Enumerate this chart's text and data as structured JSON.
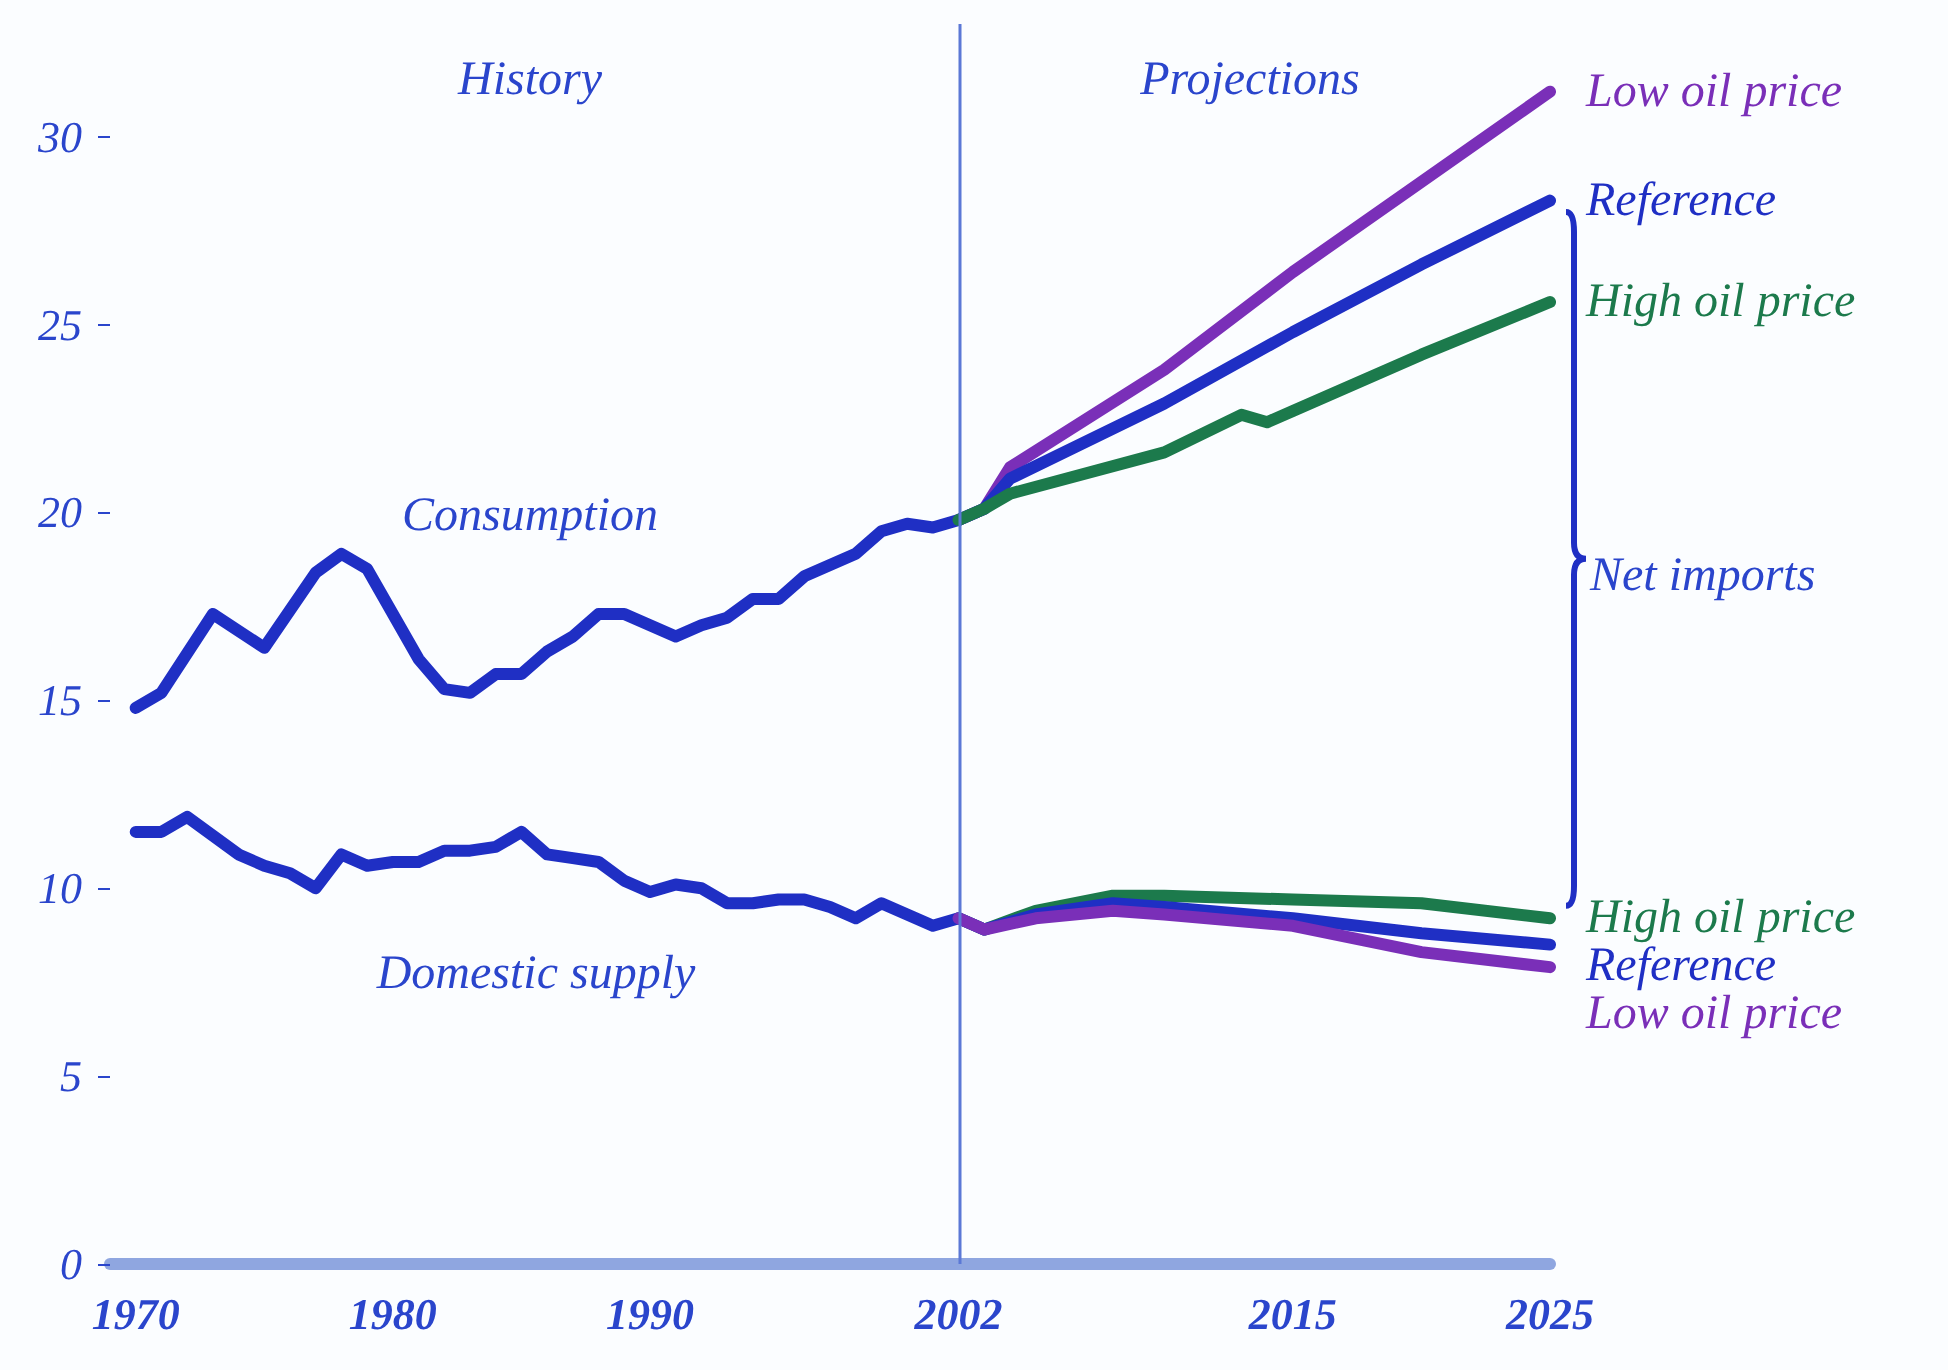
{
  "chart_data": {
    "type": "line",
    "xlim": [
      1969,
      2025
    ],
    "ylim": [
      0,
      33
    ],
    "xticks": [
      1970,
      1980,
      1990,
      2002,
      2015,
      2025
    ],
    "yticks": [
      0,
      5,
      10,
      15,
      20,
      25,
      30
    ],
    "grid": false,
    "legend": false,
    "marker": "none",
    "line_style": "solid",
    "series": [
      {
        "name": "Low oil price",
        "color": "#7a2fb8",
        "x": [
          2002,
          2003,
          2004,
          2010,
          2015,
          2020,
          2025
        ],
        "values": [
          19.8,
          20.1,
          21.2,
          23.8,
          26.4,
          28.8,
          31.2
        ]
      },
      {
        "name": "Reference",
        "color": "#1f2fc4",
        "x": [
          1970,
          1971,
          1973,
          1975,
          1977,
          1978,
          1979,
          1981,
          1982,
          1983,
          1984,
          1985,
          1986,
          1987,
          1988,
          1989,
          1990,
          1991,
          1992,
          1993,
          1994,
          1995,
          1996,
          1997,
          1998,
          1999,
          2000,
          2001,
          2002,
          2003,
          2004,
          2010,
          2015,
          2020,
          2025
        ],
        "values": [
          14.8,
          15.2,
          17.3,
          16.4,
          18.4,
          18.9,
          18.5,
          16.1,
          15.3,
          15.2,
          15.7,
          15.7,
          16.3,
          16.7,
          17.3,
          17.3,
          17.0,
          16.7,
          17.0,
          17.2,
          17.7,
          17.7,
          18.3,
          18.6,
          18.9,
          19.5,
          19.7,
          19.6,
          19.8,
          20.1,
          20.9,
          22.9,
          24.8,
          26.6,
          28.3
        ]
      },
      {
        "name": "High oil price",
        "color": "#1c7a4c",
        "x": [
          2002,
          2003,
          2004,
          2010,
          2013,
          2014,
          2015,
          2020,
          2025
        ],
        "values": [
          19.8,
          20.1,
          20.5,
          21.6,
          22.6,
          22.4,
          22.7,
          24.2,
          25.6
        ]
      },
      {
        "name": "High oil price",
        "color": "#1c7a4c",
        "x": [
          2002,
          2003,
          2005,
          2008,
          2010,
          2015,
          2020,
          2025
        ],
        "values": [
          9.2,
          8.9,
          9.4,
          9.8,
          9.8,
          9.7,
          9.6,
          9.2
        ]
      },
      {
        "name": "Reference",
        "color": "#1f2fc4",
        "x": [
          1970,
          1971,
          1972,
          1973,
          1974,
          1975,
          1976,
          1977,
          1978,
          1979,
          1980,
          1981,
          1982,
          1983,
          1984,
          1985,
          1986,
          1987,
          1988,
          1989,
          1990,
          1991,
          1992,
          1993,
          1994,
          1995,
          1996,
          1997,
          1998,
          1999,
          2000,
          2001,
          2002,
          2003,
          2005,
          2008,
          2010,
          2015,
          2020,
          2025
        ],
        "values": [
          11.5,
          11.5,
          11.9,
          11.4,
          10.9,
          10.6,
          10.4,
          10.0,
          10.9,
          10.6,
          10.7,
          10.7,
          11.0,
          11.0,
          11.1,
          11.5,
          10.9,
          10.8,
          10.7,
          10.2,
          9.9,
          10.1,
          10.0,
          9.6,
          9.6,
          9.7,
          9.7,
          9.5,
          9.2,
          9.6,
          9.3,
          9.0,
          9.2,
          8.9,
          9.3,
          9.6,
          9.5,
          9.2,
          8.8,
          8.5
        ]
      },
      {
        "name": "Low oil price",
        "color": "#7a2fb8",
        "x": [
          2002,
          2003,
          2005,
          2008,
          2010,
          2015,
          2020,
          2025
        ],
        "values": [
          9.2,
          8.9,
          9.2,
          9.4,
          9.3,
          9.0,
          8.3,
          7.9
        ]
      }
    ],
    "ref_lines": [
      {
        "axis": "x",
        "value": 2002,
        "color": "#5b78d6"
      }
    ],
    "annotations": [
      "History",
      "Projections",
      "Consumption",
      "Domestic supply",
      "Net imports"
    ]
  }
}
